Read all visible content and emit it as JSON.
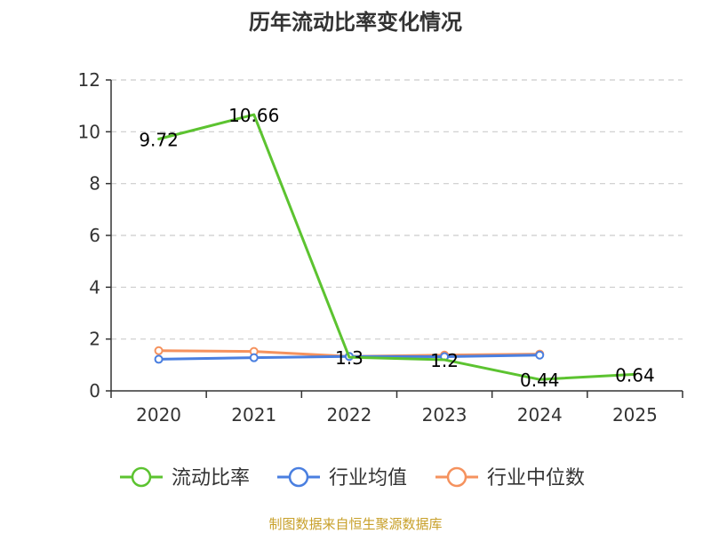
{
  "chart_data": {
    "type": "line",
    "title": "历年流动比率变化情况",
    "x": [
      "2020",
      "2021",
      "2022",
      "2023",
      "2024",
      "2025"
    ],
    "yticks": [
      "0",
      "2",
      "4",
      "6",
      "8",
      "10",
      "12"
    ],
    "ylim": [
      0,
      12
    ],
    "grid": true,
    "legend_position": "bottom",
    "series": [
      {
        "name": "流动比率",
        "color": "#5cc330",
        "values": [
          9.72,
          10.66,
          1.3,
          1.2,
          0.44,
          0.64
        ],
        "labels": [
          "9.72",
          "10.66",
          "1.3",
          "1.2",
          "0.44",
          "0.64"
        ],
        "markers": [
          false,
          false,
          false,
          false,
          false,
          false
        ]
      },
      {
        "name": "行业均值",
        "color": "#4a7fe0",
        "values": [
          1.22,
          1.28,
          1.33,
          1.32,
          1.38,
          null
        ],
        "markers": [
          true,
          true,
          true,
          true,
          true,
          false
        ]
      },
      {
        "name": "行业中位数",
        "color": "#f5925e",
        "values": [
          1.55,
          1.52,
          1.33,
          1.38,
          1.42,
          null
        ],
        "markers": [
          true,
          true,
          true,
          true,
          true,
          false
        ]
      }
    ]
  },
  "source_text": "制图数据来自恒生聚源数据库"
}
